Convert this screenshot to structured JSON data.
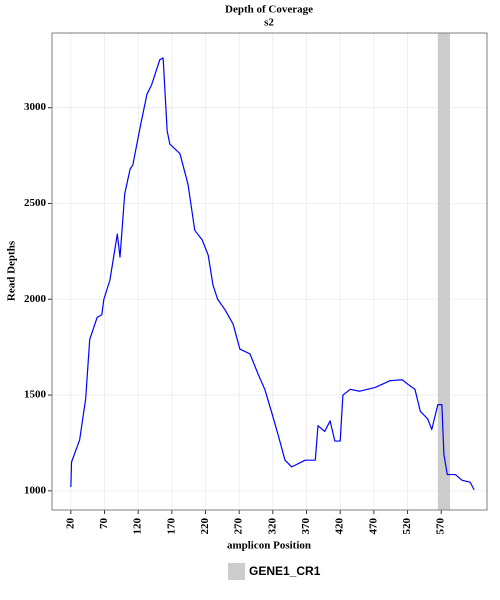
{
  "chart_data": {
    "type": "line",
    "title": "Depth of Coverage",
    "subtitle": "s2",
    "x_label": "amplicon Position",
    "y_label": "Read Depths",
    "x": [
      20,
      21,
      33,
      42,
      48,
      59,
      66,
      69,
      78,
      89,
      93,
      100,
      108,
      112,
      123,
      133,
      140,
      152,
      157,
      163,
      167,
      182,
      194,
      204,
      215,
      224,
      231,
      238,
      249,
      261,
      271,
      286,
      298,
      308,
      319,
      328,
      338,
      348,
      368,
      383,
      387,
      397,
      405,
      412,
      420,
      424,
      435,
      449,
      472,
      494,
      512,
      521,
      531,
      539,
      550,
      556,
      565,
      571,
      574,
      579,
      591,
      601,
      613,
      619
    ],
    "series": [
      {
        "name": "Read Depths",
        "color": "#0000ff",
        "values": [
          1020,
          1150,
          1265,
          1480,
          1790,
          1905,
          1920,
          2000,
          2100,
          2340,
          2220,
          2550,
          2680,
          2700,
          2900,
          3070,
          3120,
          3250,
          3260,
          2880,
          2810,
          2760,
          2600,
          2360,
          2310,
          2230,
          2075,
          2000,
          1945,
          1870,
          1740,
          1715,
          1610,
          1530,
          1400,
          1290,
          1160,
          1125,
          1160,
          1160,
          1340,
          1310,
          1365,
          1260,
          1260,
          1500,
          1530,
          1520,
          1540,
          1575,
          1580,
          1555,
          1530,
          1415,
          1375,
          1320,
          1450,
          1450,
          1190,
          1085,
          1085,
          1055,
          1045,
          1005
        ]
      }
    ],
    "bands": [
      {
        "name": "GENE1_CR1",
        "start": 565,
        "end": 583,
        "color": "#cccccc"
      }
    ],
    "xlim": [
      -8,
      638
    ],
    "ylim": [
      900,
      3390
    ],
    "xticks": [
      20,
      70,
      120,
      170,
      220,
      270,
      320,
      370,
      420,
      470,
      520,
      570
    ],
    "yticks": [
      1000,
      1500,
      2000,
      2500,
      3000
    ],
    "grid": true,
    "legend": "bottom"
  }
}
